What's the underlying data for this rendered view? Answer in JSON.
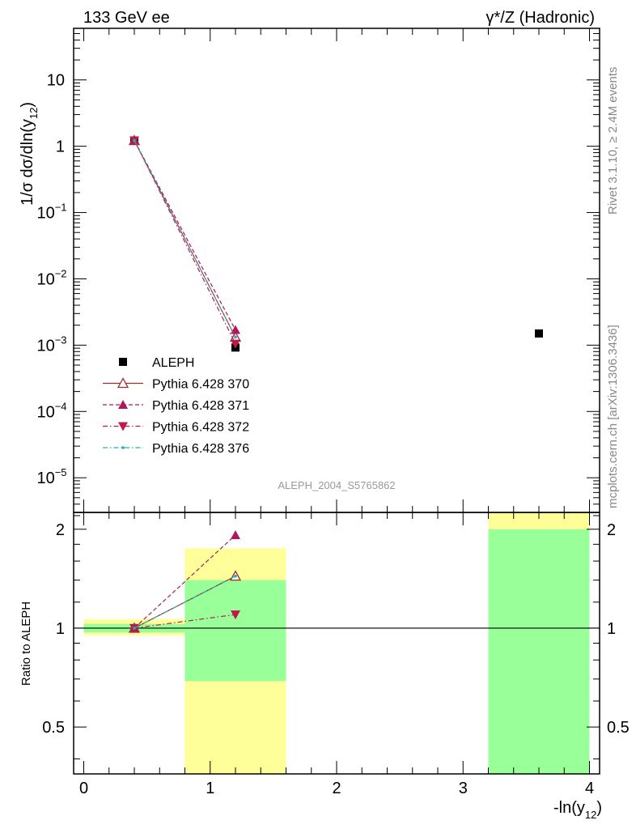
{
  "header": {
    "left_label": "133 GeV ee",
    "right_label": "γ*/Z (Hadronic)"
  },
  "side_labels": {
    "rivet": "Rivet 3.1.10, ≥ 2.4M events",
    "mcplots": "mcplots.cern.ch [arXiv:1306.3436]"
  },
  "analysis_id": "ALEPH_2004_S5765862",
  "colors": {
    "aleph": "#000000",
    "p370": "#a52a2a",
    "p371": "#b0185a",
    "p372": "#c0184a",
    "p376": "#20b0b0",
    "band_inner": "#99ff99",
    "band_outer": "#ffff99"
  },
  "chart_data": [
    {
      "type": "scatter",
      "scale": "log",
      "ylabel_main": "1/σ  dσ/dln(y",
      "ylabel_sub": "12",
      "xlim": [
        -0.08,
        4.08
      ],
      "ylim": [
        3e-06,
        60
      ],
      "yticks": [
        {
          "v": 10,
          "base": "10",
          "exp": ""
        },
        {
          "v": 1,
          "base": "1",
          "exp": ""
        },
        {
          "v": 0.1,
          "base": "10",
          "exp": "−1"
        },
        {
          "v": 0.01,
          "base": "10",
          "exp": "−2"
        },
        {
          "v": 0.001,
          "base": "10",
          "exp": "−3"
        },
        {
          "v": 0.0001,
          "base": "10",
          "exp": "−4"
        },
        {
          "v": 1e-05,
          "base": "10",
          "exp": "−5"
        }
      ],
      "legend": "left-middle",
      "series": [
        {
          "key": "aleph",
          "name": "ALEPH",
          "style": "square",
          "x": [
            0.4,
            1.2,
            3.6
          ],
          "y": [
            1.22,
            0.00092,
            0.0015
          ]
        },
        {
          "key": "p370",
          "name": "Pythia 6.428 370",
          "style": "open-triangle-solid",
          "x": [
            0.4,
            1.2
          ],
          "y": [
            1.22,
            0.00132
          ]
        },
        {
          "key": "p371",
          "name": "Pythia 6.428 371",
          "style": "filled-triangle-dashed",
          "x": [
            0.4,
            1.2
          ],
          "y": [
            1.22,
            0.0017
          ]
        },
        {
          "key": "p372",
          "name": "Pythia 6.428 372",
          "style": "down-triangle-dashdot",
          "x": [
            0.4,
            1.2
          ],
          "y": [
            1.22,
            0.00105
          ]
        },
        {
          "key": "p376",
          "name": "Pythia 6.428 376",
          "style": "dot-dashdot",
          "x": [
            0.4,
            1.2
          ],
          "y": [
            1.22,
            0.00132
          ]
        }
      ]
    },
    {
      "type": "scatter",
      "scale": "log",
      "ylabel": "Ratio to ALEPH",
      "xlabel_main": "-ln(y",
      "xlabel_sub": "12",
      "xlim": [
        -0.08,
        4.08
      ],
      "ylim": [
        0.36,
        2.25
      ],
      "xticks": [
        "0",
        "1",
        "2",
        "3",
        "4"
      ],
      "xtick_values": [
        0,
        1,
        2,
        3,
        4
      ],
      "yticks": [
        "0.5",
        "1",
        "2"
      ],
      "ytick_values": [
        0.5,
        1,
        2
      ],
      "bands": [
        {
          "x0": 0.0,
          "x1": 0.8,
          "outer": [
            0.95,
            1.065
          ],
          "inner": [
            0.97,
            1.03
          ]
        },
        {
          "x0": 0.8,
          "x1": 1.6,
          "outer": [
            0.36,
            1.75
          ],
          "inner": [
            0.69,
            1.4
          ]
        },
        {
          "x0": 3.2,
          "x1": 4.0,
          "outer": [
            0.36,
            2.25
          ],
          "inner": [
            0.36,
            2.0
          ]
        }
      ],
      "series": [
        {
          "key": "p370",
          "x": [
            0.4,
            1.2
          ],
          "y": [
            1.0,
            1.44
          ]
        },
        {
          "key": "p371",
          "x": [
            0.4,
            1.2
          ],
          "y": [
            1.0,
            1.92
          ]
        },
        {
          "key": "p372",
          "x": [
            0.4,
            1.2
          ],
          "y": [
            1.0,
            1.1
          ]
        },
        {
          "key": "p376",
          "x": [
            0.4,
            1.2
          ],
          "y": [
            1.0,
            1.44
          ]
        }
      ]
    }
  ]
}
